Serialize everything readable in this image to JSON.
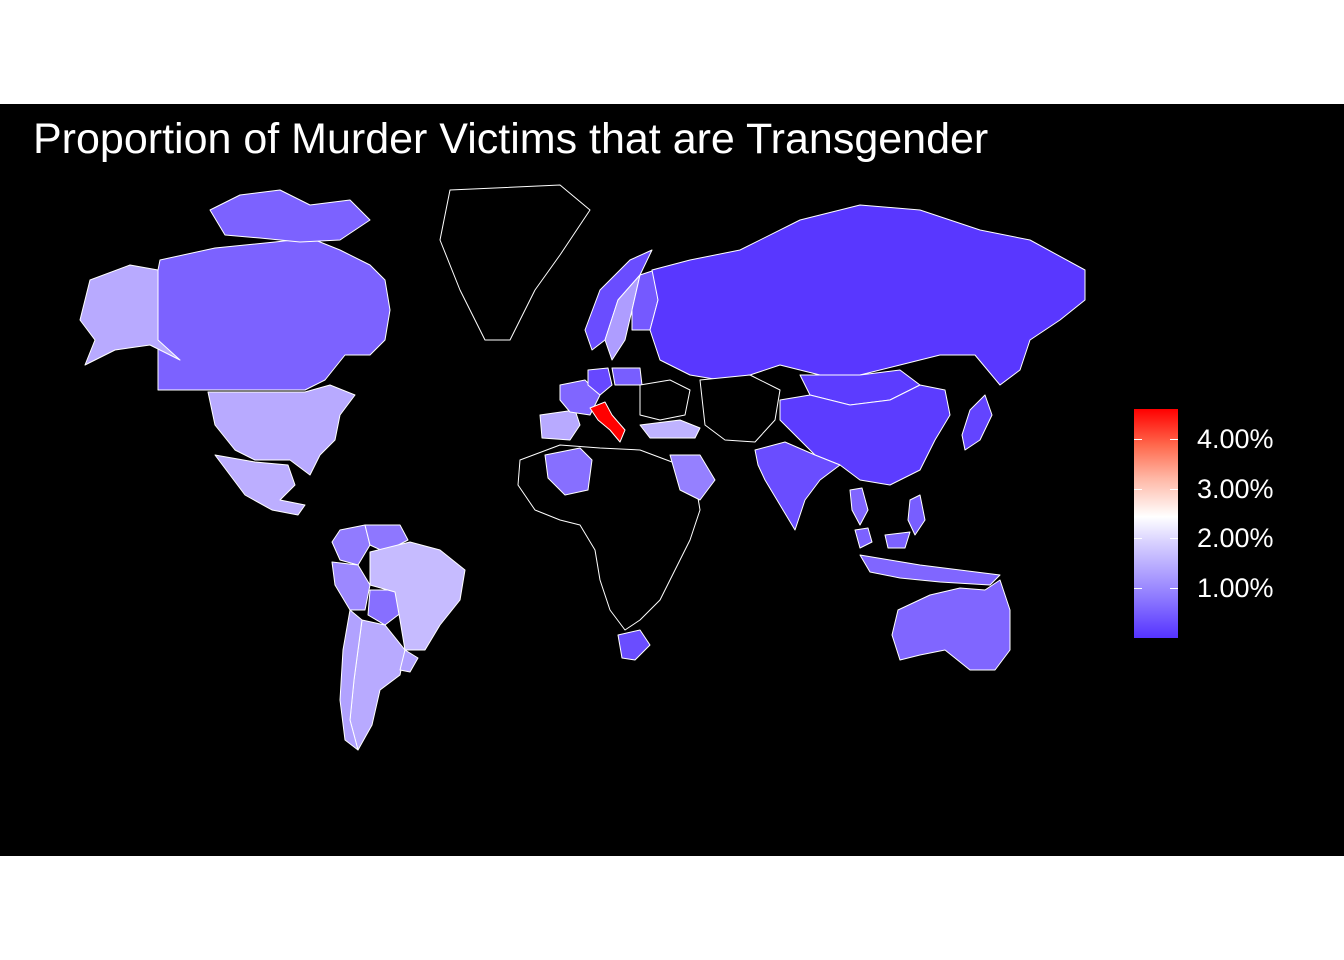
{
  "title": "Proportion of Murder Victims that are Transgender",
  "legend": {
    "ticks": [
      "1.00%",
      "2.00%",
      "3.00%",
      "4.00%"
    ],
    "tick_values": [
      1,
      2,
      3,
      4
    ],
    "range": [
      0,
      4.6
    ],
    "colors": {
      "low": "#5533ff",
      "mid": "#ffffff",
      "high": "#ff0000",
      "no_data": "#000000"
    }
  },
  "map_data": {
    "metric": "percent",
    "countries": [
      {
        "name": "Russia",
        "value": 0.05
      },
      {
        "name": "China",
        "value": 0.1
      },
      {
        "name": "Mongolia",
        "value": 0.1
      },
      {
        "name": "Japan",
        "value": 0.2
      },
      {
        "name": "India",
        "value": 0.3
      },
      {
        "name": "Canada",
        "value": 0.55
      },
      {
        "name": "United States",
        "value": 1.4
      },
      {
        "name": "Mexico",
        "value": 1.45
      },
      {
        "name": "Colombia",
        "value": 0.85
      },
      {
        "name": "Venezuela",
        "value": 0.8
      },
      {
        "name": "Peru",
        "value": 1.0
      },
      {
        "name": "Bolivia",
        "value": 0.7
      },
      {
        "name": "Brazil",
        "value": 1.6
      },
      {
        "name": "Argentina",
        "value": 1.4
      },
      {
        "name": "Chile",
        "value": 1.3
      },
      {
        "name": "Uruguay",
        "value": 1.3
      },
      {
        "name": "Norway",
        "value": 0.3
      },
      {
        "name": "Sweden",
        "value": 1.25
      },
      {
        "name": "Finland",
        "value": 0.45
      },
      {
        "name": "Spain",
        "value": 1.4
      },
      {
        "name": "France",
        "value": 0.6
      },
      {
        "name": "Italy",
        "value": 4.6
      },
      {
        "name": "Germany",
        "value": 0.25
      },
      {
        "name": "Poland",
        "value": 0.5
      },
      {
        "name": "Turkey",
        "value": 1.5
      },
      {
        "name": "Algeria",
        "value": 0.7
      },
      {
        "name": "Saudi Arabia",
        "value": 0.9
      },
      {
        "name": "South Africa",
        "value": 0.3
      },
      {
        "name": "Australia",
        "value": 0.6
      },
      {
        "name": "Philippines",
        "value": 0.5
      },
      {
        "name": "Indonesia",
        "value": 0.6
      },
      {
        "name": "Malaysia",
        "value": 0.55
      },
      {
        "name": "Thailand",
        "value": 0.6
      },
      {
        "name": "Greenland",
        "value": null
      }
    ]
  }
}
